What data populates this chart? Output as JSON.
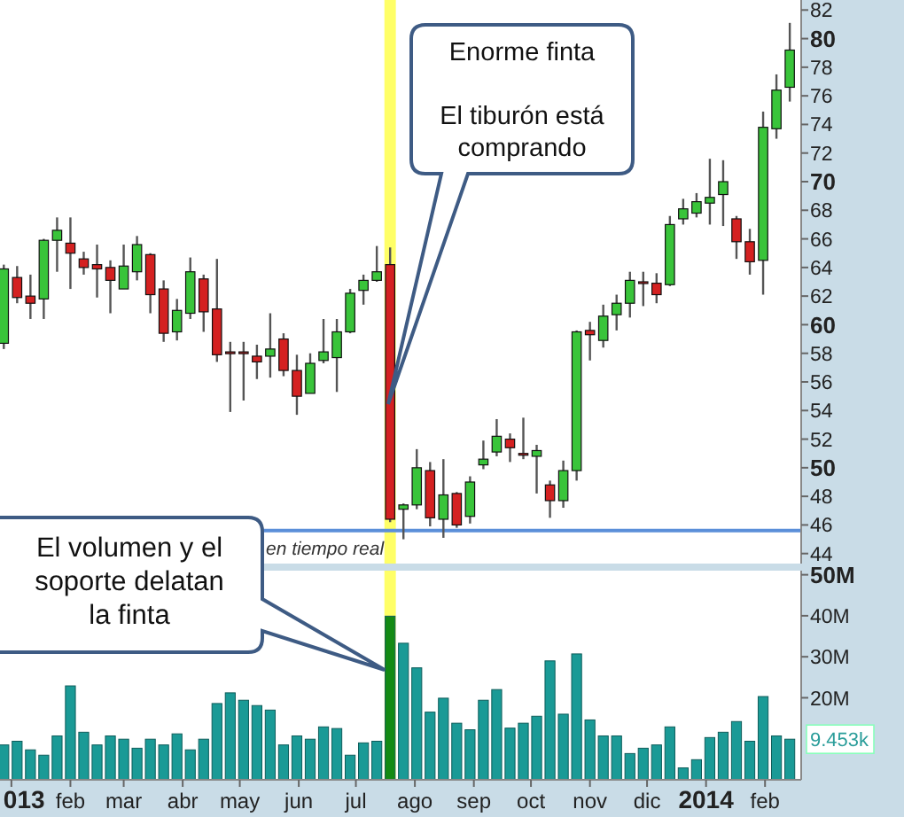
{
  "chart_data": [
    {
      "type": "candlestick",
      "x": [
        "2012-12-28",
        "2013-01-04",
        "2013-01-11",
        "2013-01-18",
        "2013-01-25",
        "2013-02-01",
        "2013-02-08",
        "2013-02-15",
        "2013-02-22",
        "2013-03-01",
        "2013-03-08",
        "2013-03-15",
        "2013-03-22",
        "2013-03-29",
        "2013-04-05",
        "2013-04-12",
        "2013-04-19",
        "2013-04-26",
        "2013-05-03",
        "2013-05-10",
        "2013-05-17",
        "2013-05-24",
        "2013-05-31",
        "2013-06-07",
        "2013-06-14",
        "2013-06-21",
        "2013-06-28",
        "2013-07-05",
        "2013-07-12",
        "2013-07-19",
        "2013-07-26",
        "2013-08-02",
        "2013-08-09",
        "2013-08-16",
        "2013-08-23",
        "2013-08-30",
        "2013-09-06",
        "2013-09-13",
        "2013-09-20",
        "2013-09-27",
        "2013-10-04",
        "2013-10-11",
        "2013-10-18",
        "2013-10-25",
        "2013-11-01",
        "2013-11-08",
        "2013-11-15",
        "2013-11-22",
        "2013-11-29",
        "2013-12-06",
        "2013-12-13",
        "2013-12-20",
        "2013-12-27",
        "2014-01-03",
        "2014-01-10",
        "2014-01-17",
        "2014-01-24",
        "2014-01-31",
        "2014-02-07",
        "2014-02-14"
      ],
      "ohlc": [
        [
          58.7,
          64.2,
          58.3,
          63.9
        ],
        [
          63.3,
          64.1,
          61.5,
          61.9
        ],
        [
          62.0,
          63.5,
          60.4,
          61.5
        ],
        [
          61.8,
          66.0,
          60.4,
          65.9
        ],
        [
          65.9,
          67.5,
          63.7,
          66.6
        ],
        [
          65.7,
          67.5,
          62.5,
          65.0
        ],
        [
          64.6,
          65.1,
          63.5,
          64.0
        ],
        [
          64.2,
          65.6,
          61.9,
          63.9
        ],
        [
          64.0,
          64.5,
          60.8,
          63.1
        ],
        [
          62.5,
          65.6,
          62.5,
          64.1
        ],
        [
          63.7,
          66.2,
          63.1,
          65.6
        ],
        [
          64.9,
          65.0,
          60.8,
          62.1
        ],
        [
          62.5,
          63.1,
          58.8,
          59.4
        ],
        [
          59.5,
          61.8,
          58.9,
          61.0
        ],
        [
          60.8,
          64.7,
          60.4,
          63.7
        ],
        [
          63.2,
          63.5,
          59.5,
          60.9
        ],
        [
          61.1,
          64.6,
          57.4,
          57.9
        ],
        [
          58.1,
          58.8,
          53.9,
          58.0
        ],
        [
          58.1,
          58.8,
          54.7,
          58.0
        ],
        [
          57.8,
          58.6,
          56.2,
          57.4
        ],
        [
          57.8,
          60.8,
          56.3,
          58.3
        ],
        [
          59.0,
          59.4,
          56.4,
          56.8
        ],
        [
          56.8,
          57.9,
          53.7,
          55.0
        ],
        [
          55.2,
          58.0,
          55.2,
          57.3
        ],
        [
          57.5,
          60.4,
          57.3,
          58.1
        ],
        [
          57.7,
          60.4,
          55.3,
          59.5
        ],
        [
          59.5,
          62.5,
          59.4,
          62.2
        ],
        [
          62.4,
          63.5,
          61.4,
          63.1
        ],
        [
          63.1,
          65.5,
          63.0,
          63.7
        ],
        [
          64.2,
          65.4,
          46.2,
          46.4
        ],
        [
          47.1,
          47.5,
          45.0,
          47.4
        ],
        [
          47.4,
          51.3,
          47.1,
          50.0
        ],
        [
          49.8,
          50.4,
          45.9,
          46.5
        ],
        [
          46.4,
          50.6,
          45.1,
          48.1
        ],
        [
          48.2,
          48.3,
          45.8,
          46.0
        ],
        [
          46.6,
          49.4,
          46.1,
          49.0
        ],
        [
          50.2,
          51.9,
          49.9,
          50.6
        ],
        [
          51.1,
          53.4,
          50.8,
          52.2
        ],
        [
          52.0,
          52.4,
          50.4,
          51.4
        ],
        [
          51.0,
          53.5,
          50.6,
          50.9
        ],
        [
          50.8,
          51.6,
          48.2,
          51.2
        ],
        [
          48.8,
          49.1,
          46.5,
          47.7
        ],
        [
          47.7,
          50.5,
          47.2,
          49.8
        ],
        [
          49.8,
          59.6,
          49.1,
          59.5
        ],
        [
          59.6,
          60.2,
          57.5,
          59.3
        ],
        [
          58.9,
          61.4,
          58.4,
          60.6
        ],
        [
          60.7,
          62.1,
          59.6,
          61.5
        ],
        [
          61.5,
          63.7,
          60.5,
          63.1
        ],
        [
          63.0,
          63.7,
          61.3,
          62.9
        ],
        [
          62.9,
          63.6,
          61.5,
          62.1
        ],
        [
          62.8,
          67.6,
          62.7,
          67.0
        ],
        [
          67.4,
          68.8,
          67.0,
          68.1
        ],
        [
          67.8,
          69.2,
          67.5,
          68.6
        ],
        [
          68.5,
          71.6,
          67.0,
          68.9
        ],
        [
          69.1,
          71.5,
          66.9,
          70.0
        ],
        [
          67.4,
          67.6,
          64.6,
          65.8
        ],
        [
          65.8,
          66.7,
          63.5,
          64.4
        ],
        [
          64.5,
          74.9,
          62.1,
          73.8
        ],
        [
          73.7,
          77.5,
          73.0,
          76.4
        ],
        [
          76.6,
          81.1,
          75.6,
          79.2
        ]
      ],
      "xlim": [
        "2012-12-26",
        "2014-02-20"
      ],
      "ylim": [
        43.3,
        82.7
      ],
      "yticks": [
        44,
        46,
        48,
        50,
        52,
        54,
        56,
        58,
        60,
        62,
        64,
        66,
        68,
        70,
        72,
        74,
        76,
        78,
        80,
        82
      ],
      "tick_labels": "y",
      "ref_lines": [
        {
          "axis": "y",
          "value": 45.6,
          "color": "#5b8fd9"
        }
      ],
      "bands": [
        {
          "axis": "x",
          "from": "2013-07-16",
          "to": "2013-07-22",
          "color": "#ffff66"
        }
      ],
      "annotations": [
        "Enorme finta",
        "El tiburón está comprando",
        "en tiempo real"
      ]
    },
    {
      "type": "bar",
      "x": [
        "2012-12-28",
        "2013-01-04",
        "2013-01-11",
        "2013-01-18",
        "2013-01-25",
        "2013-02-01",
        "2013-02-08",
        "2013-02-15",
        "2013-02-22",
        "2013-03-01",
        "2013-03-08",
        "2013-03-15",
        "2013-03-22",
        "2013-03-29",
        "2013-04-05",
        "2013-04-12",
        "2013-04-19",
        "2013-04-26",
        "2013-05-03",
        "2013-05-10",
        "2013-05-17",
        "2013-05-24",
        "2013-05-31",
        "2013-06-07",
        "2013-06-14",
        "2013-06-21",
        "2013-06-28",
        "2013-07-05",
        "2013-07-12",
        "2013-07-19",
        "2013-07-26",
        "2013-08-02",
        "2013-08-09",
        "2013-08-16",
        "2013-08-23",
        "2013-08-30",
        "2013-09-06",
        "2013-09-13",
        "2013-09-20",
        "2013-09-27",
        "2013-10-04",
        "2013-10-11",
        "2013-10-18",
        "2013-10-25",
        "2013-11-01",
        "2013-11-08",
        "2013-11-15",
        "2013-11-22",
        "2013-11-29",
        "2013-12-06",
        "2013-12-13",
        "2013-12-20",
        "2013-12-27",
        "2014-01-03",
        "2014-01-10",
        "2014-01-17",
        "2014-01-24",
        "2014-01-31",
        "2014-02-07",
        "2014-02-14"
      ],
      "values": [
        8.5,
        9.4,
        7.3,
        6.0,
        10.7,
        22.9,
        11.6,
        8.5,
        10.7,
        9.9,
        7.7,
        9.9,
        8.5,
        11.2,
        7.3,
        9.9,
        18.6,
        21.2,
        19.4,
        18.1,
        17.0,
        8.5,
        10.7,
        9.9,
        12.9,
        12.5,
        6.0,
        9.0,
        9.4,
        39.9,
        33.3,
        27.3,
        16.5,
        19.9,
        13.8,
        12.2,
        19.4,
        22.0,
        12.6,
        13.8,
        15.5,
        29.0,
        16.0,
        30.7,
        14.6,
        10.7,
        10.7,
        6.4,
        7.7,
        8.5,
        12.9,
        2.9,
        4.9,
        10.3,
        11.6,
        14.2,
        9.4,
        20.3,
        10.7,
        9.9
      ],
      "colors": [
        "#1a9a96",
        "#1a9a96",
        "#1a9a96",
        "#1a9a96",
        "#1a9a96",
        "#1a9a96",
        "#1a9a96",
        "#1a9a96",
        "#1a9a96",
        "#1a9a96",
        "#1a9a96",
        "#1a9a96",
        "#1a9a96",
        "#1a9a96",
        "#1a9a96",
        "#1a9a96",
        "#1a9a96",
        "#1a9a96",
        "#1a9a96",
        "#1a9a96",
        "#1a9a96",
        "#1a9a96",
        "#1a9a96",
        "#1a9a96",
        "#1a9a96",
        "#1a9a96",
        "#1a9a96",
        "#1a9a96",
        "#1a9a96",
        "#138a13",
        "#1a9a96",
        "#1a9a96",
        "#1a9a96",
        "#1a9a96",
        "#1a9a96",
        "#1a9a96",
        "#1a9a96",
        "#1a9a96",
        "#1a9a96",
        "#1a9a96",
        "#1a9a96",
        "#1a9a96",
        "#1a9a96",
        "#1a9a96",
        "#1a9a96",
        "#1a9a96",
        "#1a9a96",
        "#1a9a96",
        "#1a9a96",
        "#1a9a96",
        "#1a9a96",
        "#1a9a96",
        "#1a9a96",
        "#1a9a96",
        "#1a9a96",
        "#1a9a96",
        "#1a9a96",
        "#1a9a96",
        "#1a9a96",
        "#1a9a96"
      ],
      "xlim": [
        "2012-12-26",
        "2014-02-20"
      ],
      "ylim": [
        0,
        51
      ],
      "yticks": [
        {
          "value": 20,
          "label": "20M"
        },
        {
          "value": 30,
          "label": "30M"
        },
        {
          "value": 40,
          "label": "40M"
        },
        {
          "value": 50,
          "label": "50M"
        }
      ],
      "xticks": [
        {
          "value": "2013-01-01",
          "label": "013"
        },
        {
          "value": "2013-02-01",
          "label": "feb"
        },
        {
          "value": "2013-03-01",
          "label": "mar"
        },
        {
          "value": "2013-04-01",
          "label": "abr"
        },
        {
          "value": "2013-05-01",
          "label": "may"
        },
        {
          "value": "2013-06-01",
          "label": "jun"
        },
        {
          "value": "2013-07-01",
          "label": "jul"
        },
        {
          "value": "2013-08-01",
          "label": "ago"
        },
        {
          "value": "2013-09-01",
          "label": "sep"
        },
        {
          "value": "2013-10-01",
          "label": "oct"
        },
        {
          "value": "2013-11-01",
          "label": "nov"
        },
        {
          "value": "2013-12-01",
          "label": "dic"
        },
        {
          "value": "2014-01-01",
          "label": "2014"
        },
        {
          "value": "2014-02-01",
          "label": "feb"
        }
      ],
      "bands": [
        {
          "axis": "x",
          "from": "2013-07-16",
          "to": "2013-07-22",
          "color": "#ffff66"
        }
      ],
      "annotations": [
        "El volumen y el soporte delatan la finta",
        "9.453k"
      ]
    }
  ]
}
